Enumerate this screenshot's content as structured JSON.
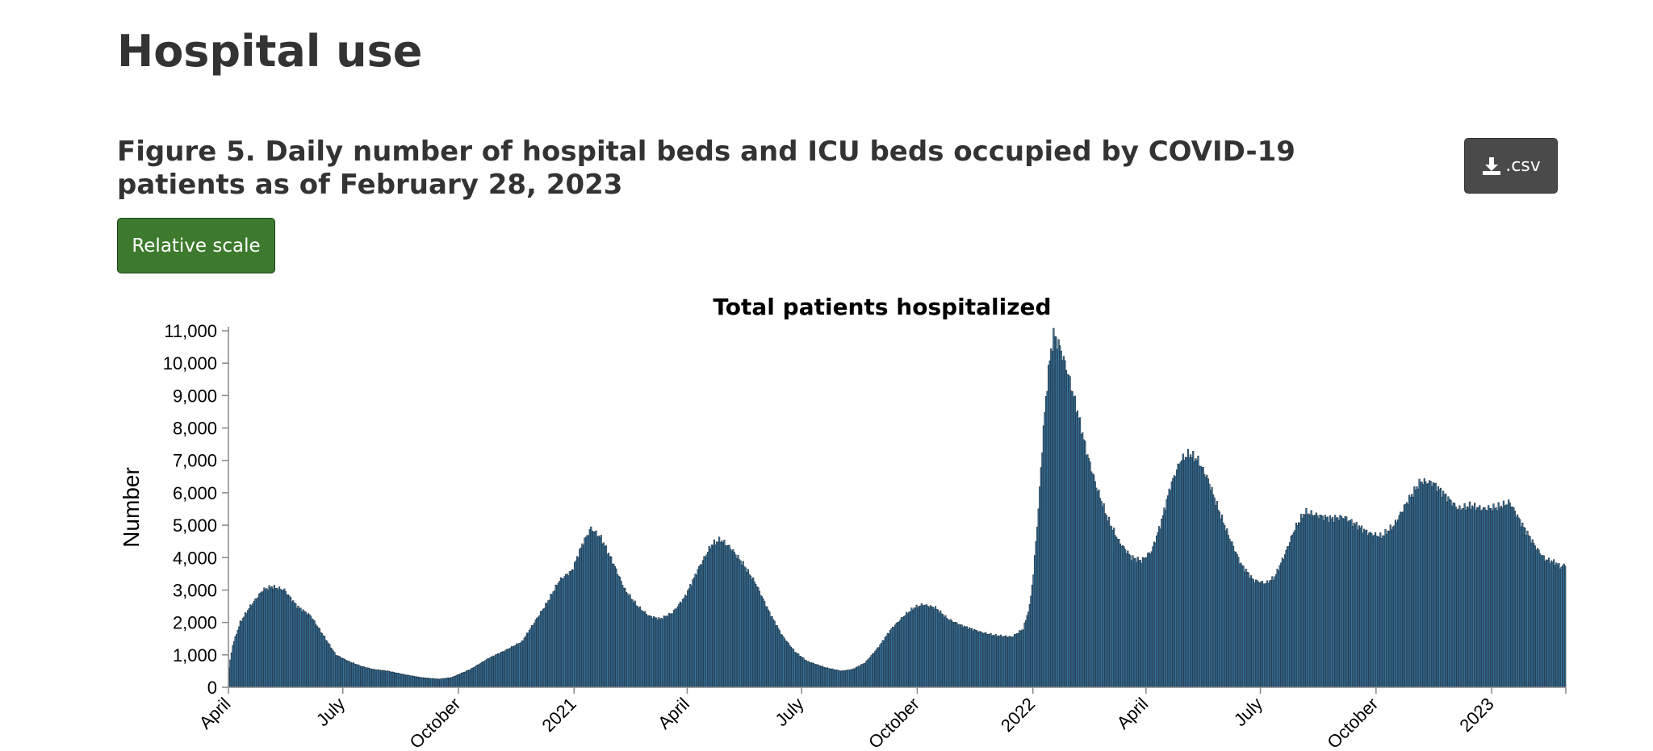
{
  "page": {
    "title": "Hospital use"
  },
  "figure": {
    "title": "Figure 5. Daily number of hospital beds and ICU beds occupied by COVID-19 patients as of February 28, 2023",
    "csv_label": ".csv",
    "scale_button_label": "Relative scale"
  },
  "colors": {
    "bar_fill": "#3d7aa3",
    "bar_stroke": "#1b2b3a",
    "scale_button": "#3d7a2e",
    "csv_button": "#4a4a4a"
  },
  "icons": {
    "csv": "download-icon"
  },
  "chart_data": {
    "type": "bar",
    "title": "Total patients hospitalized",
    "xlabel": "",
    "ylabel": "Number",
    "ylim": [
      0,
      11000
    ],
    "yticks": [
      0,
      1000,
      2000,
      3000,
      4000,
      5000,
      6000,
      7000,
      8000,
      9000,
      10000,
      11000
    ],
    "ytick_labels": [
      "0",
      "1,000",
      "2,000",
      "3,000",
      "4,000",
      "5,000",
      "6,000",
      "7,000",
      "8,000",
      "9,000",
      "10,000",
      "11,000"
    ],
    "x_range": [
      "2020-04-01",
      "2023-03-01"
    ],
    "x_ticks": [
      {
        "date": "2020-04-01",
        "label": "April"
      },
      {
        "date": "2020-07-01",
        "label": "July"
      },
      {
        "date": "2020-10-01",
        "label": "October"
      },
      {
        "date": "2021-01-01",
        "label": "2021"
      },
      {
        "date": "2021-04-01",
        "label": "April"
      },
      {
        "date": "2021-07-01",
        "label": "July"
      },
      {
        "date": "2021-10-01",
        "label": "October"
      },
      {
        "date": "2022-01-01",
        "label": "2022"
      },
      {
        "date": "2022-04-01",
        "label": "April"
      },
      {
        "date": "2022-07-01",
        "label": "July"
      },
      {
        "date": "2022-10-01",
        "label": "October"
      },
      {
        "date": "2023-01-01",
        "label": "2023"
      }
    ],
    "grid": false,
    "series": [
      {
        "points": [
          [
            "2020-04-01",
            600
          ],
          [
            "2020-04-04",
            1300
          ],
          [
            "2020-04-10",
            2000
          ],
          [
            "2020-04-18",
            2500
          ],
          [
            "2020-04-28",
            3000
          ],
          [
            "2020-05-05",
            3100
          ],
          [
            "2020-05-15",
            3000
          ],
          [
            "2020-05-25",
            2500
          ],
          [
            "2020-06-05",
            2200
          ],
          [
            "2020-06-15",
            1600
          ],
          [
            "2020-06-25",
            1000
          ],
          [
            "2020-07-05",
            800
          ],
          [
            "2020-07-15",
            650
          ],
          [
            "2020-07-25",
            550
          ],
          [
            "2020-08-05",
            500
          ],
          [
            "2020-08-20",
            380
          ],
          [
            "2020-09-01",
            300
          ],
          [
            "2020-09-15",
            250
          ],
          [
            "2020-09-25",
            300
          ],
          [
            "2020-10-10",
            550
          ],
          [
            "2020-10-25",
            900
          ],
          [
            "2020-11-05",
            1100
          ],
          [
            "2020-11-20",
            1400
          ],
          [
            "2020-11-30",
            2000
          ],
          [
            "2020-12-10",
            2600
          ],
          [
            "2020-12-20",
            3300
          ],
          [
            "2020-12-30",
            3600
          ],
          [
            "2021-01-07",
            4400
          ],
          [
            "2021-01-14",
            4900
          ],
          [
            "2021-01-22",
            4600
          ],
          [
            "2021-02-01",
            3800
          ],
          [
            "2021-02-10",
            3000
          ],
          [
            "2021-02-20",
            2500
          ],
          [
            "2021-03-01",
            2200
          ],
          [
            "2021-03-10",
            2100
          ],
          [
            "2021-03-20",
            2300
          ],
          [
            "2021-03-30",
            2800
          ],
          [
            "2021-04-10",
            3700
          ],
          [
            "2021-04-20",
            4400
          ],
          [
            "2021-04-27",
            4550
          ],
          [
            "2021-05-05",
            4300
          ],
          [
            "2021-05-15",
            3800
          ],
          [
            "2021-05-25",
            3200
          ],
          [
            "2021-06-05",
            2300
          ],
          [
            "2021-06-15",
            1600
          ],
          [
            "2021-06-25",
            1100
          ],
          [
            "2021-07-05",
            800
          ],
          [
            "2021-07-20",
            600
          ],
          [
            "2021-08-01",
            500
          ],
          [
            "2021-08-10",
            550
          ],
          [
            "2021-08-20",
            750
          ],
          [
            "2021-08-30",
            1200
          ],
          [
            "2021-09-10",
            1800
          ],
          [
            "2021-09-20",
            2200
          ],
          [
            "2021-09-28",
            2450
          ],
          [
            "2021-10-05",
            2550
          ],
          [
            "2021-10-15",
            2450
          ],
          [
            "2021-10-25",
            2100
          ],
          [
            "2021-11-05",
            1900
          ],
          [
            "2021-11-20",
            1700
          ],
          [
            "2021-12-01",
            1600
          ],
          [
            "2021-12-15",
            1550
          ],
          [
            "2021-12-24",
            1800
          ],
          [
            "2021-12-29",
            2500
          ],
          [
            "2022-01-01",
            3500
          ],
          [
            "2022-01-05",
            5500
          ],
          [
            "2022-01-09",
            8000
          ],
          [
            "2022-01-13",
            9800
          ],
          [
            "2022-01-17",
            10900
          ],
          [
            "2022-01-22",
            10500
          ],
          [
            "2022-01-29",
            9600
          ],
          [
            "2022-02-05",
            8500
          ],
          [
            "2022-02-12",
            7300
          ],
          [
            "2022-02-20",
            6200
          ],
          [
            "2022-03-01",
            5200
          ],
          [
            "2022-03-10",
            4500
          ],
          [
            "2022-03-20",
            4000
          ],
          [
            "2022-03-28",
            3900
          ],
          [
            "2022-04-05",
            4200
          ],
          [
            "2022-04-12",
            5000
          ],
          [
            "2022-04-20",
            6200
          ],
          [
            "2022-04-28",
            7000
          ],
          [
            "2022-05-05",
            7200
          ],
          [
            "2022-05-12",
            7000
          ],
          [
            "2022-05-20",
            6400
          ],
          [
            "2022-05-28",
            5500
          ],
          [
            "2022-06-05",
            4700
          ],
          [
            "2022-06-15",
            3800
          ],
          [
            "2022-06-25",
            3300
          ],
          [
            "2022-07-05",
            3200
          ],
          [
            "2022-07-12",
            3400
          ],
          [
            "2022-07-20",
            4100
          ],
          [
            "2022-07-28",
            4900
          ],
          [
            "2022-08-05",
            5400
          ],
          [
            "2022-08-15",
            5300
          ],
          [
            "2022-08-25",
            5200
          ],
          [
            "2022-09-05",
            5250
          ],
          [
            "2022-09-15",
            5000
          ],
          [
            "2022-09-25",
            4750
          ],
          [
            "2022-10-05",
            4650
          ],
          [
            "2022-10-15",
            5000
          ],
          [
            "2022-10-25",
            5700
          ],
          [
            "2022-11-05",
            6350
          ],
          [
            "2022-11-15",
            6300
          ],
          [
            "2022-11-25",
            5900
          ],
          [
            "2022-12-05",
            5500
          ],
          [
            "2022-12-15",
            5600
          ],
          [
            "2022-12-25",
            5500
          ],
          [
            "2023-01-05",
            5550
          ],
          [
            "2023-01-15",
            5700
          ],
          [
            "2023-01-25",
            5000
          ],
          [
            "2023-02-05",
            4300
          ],
          [
            "2023-02-12",
            3950
          ],
          [
            "2023-02-20",
            3850
          ],
          [
            "2023-02-25",
            3700
          ],
          [
            "2023-02-28",
            3800
          ]
        ]
      }
    ]
  }
}
